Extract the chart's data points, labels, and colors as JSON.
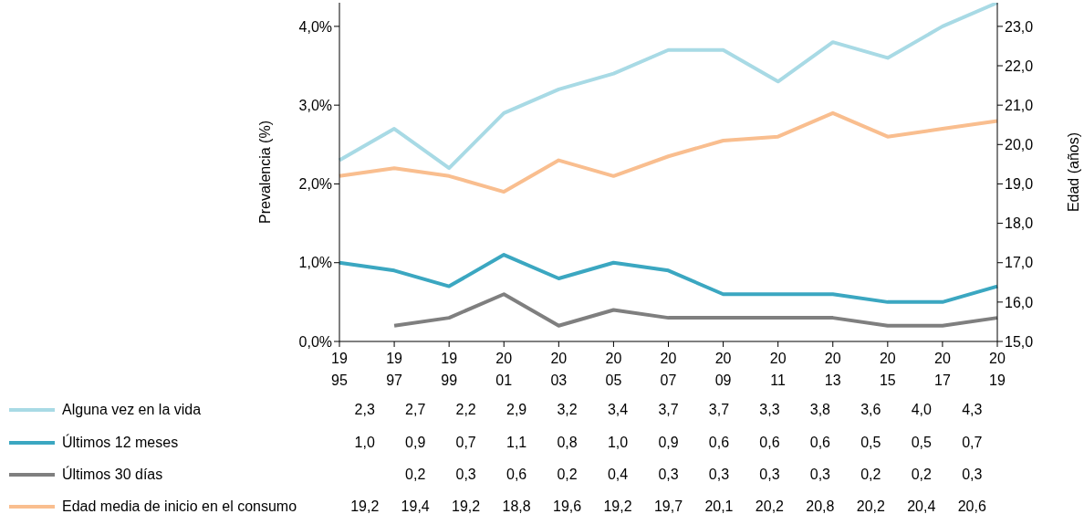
{
  "chart_data": {
    "type": "line",
    "ylabel": "Prevalencia (%)",
    "y2label": "Edad (años)",
    "categories": [
      "1995",
      "1997",
      "1999",
      "2001",
      "2003",
      "2005",
      "2007",
      "2009",
      "2011",
      "2013",
      "2015",
      "2017",
      "2019"
    ],
    "ylim": [
      0,
      4.3
    ],
    "yticks": [
      {
        "value": 0,
        "label": "0,0%"
      },
      {
        "value": 1,
        "label": "1,0%"
      },
      {
        "value": 2,
        "label": "2,0%"
      },
      {
        "value": 3,
        "label": "3,0%"
      },
      {
        "value": 4,
        "label": "4,0%"
      }
    ],
    "y2lim": [
      15,
      23.6
    ],
    "y2ticks": [
      {
        "value": 15,
        "label": "15,0"
      },
      {
        "value": 16,
        "label": "16,0"
      },
      {
        "value": 17,
        "label": "17,0"
      },
      {
        "value": 18,
        "label": "18,0"
      },
      {
        "value": 19,
        "label": "19,0"
      },
      {
        "value": 20,
        "label": "20,0"
      },
      {
        "value": 21,
        "label": "21,0"
      },
      {
        "value": 22,
        "label": "22,0"
      },
      {
        "value": 23,
        "label": "23,0"
      }
    ],
    "legend": "bottom",
    "grid": false,
    "marker": "none",
    "line_style": "solid",
    "series": [
      {
        "name": "Alguna vez en la vida",
        "color": "#a8dae5",
        "values": [
          2.3,
          2.7,
          2.2,
          2.9,
          3.2,
          3.4,
          3.7,
          3.7,
          3.3,
          3.8,
          3.6,
          4.0,
          4.3
        ],
        "value_labels": [
          "2,3",
          "2,7",
          "2,2",
          "2,9",
          "3,2",
          "3,4",
          "3,7",
          "3,7",
          "3,3",
          "3,8",
          "3,6",
          "4,0",
          "4,3"
        ]
      },
      {
        "name": "Últimos 12 meses",
        "color": "#3ba7c1",
        "values": [
          1.0,
          0.9,
          0.7,
          1.1,
          0.8,
          1.0,
          0.9,
          0.6,
          0.6,
          0.6,
          0.5,
          0.5,
          0.7
        ],
        "value_labels": [
          "1,0",
          "0,9",
          "0,7",
          "1,1",
          "0,8",
          "1,0",
          "0,9",
          "0,6",
          "0,6",
          "0,6",
          "0,5",
          "0,5",
          "0,7"
        ]
      },
      {
        "name": "Últimos 30 días",
        "color": "#7f7f7f",
        "values": [
          null,
          0.2,
          0.3,
          0.6,
          0.2,
          0.4,
          0.3,
          0.3,
          0.3,
          0.3,
          0.2,
          0.2,
          0.3
        ],
        "value_labels": [
          null,
          "0,2",
          "0,3",
          "0,6",
          "0,2",
          "0,4",
          "0,3",
          "0,3",
          "0,3",
          "0,3",
          "0,2",
          "0,2",
          "0,3"
        ]
      },
      {
        "name": "Edad media de inicio en el consumo",
        "color": "#f9be8f",
        "axis": "y2",
        "values": [
          19.2,
          19.4,
          19.2,
          18.8,
          19.6,
          19.2,
          19.7,
          20.1,
          20.2,
          20.8,
          20.2,
          20.4,
          20.6
        ],
        "value_labels": [
          "19,2",
          "19,4",
          "19,2",
          "18,8",
          "19,6",
          "19,2",
          "19,7",
          "20,1",
          "20,2",
          "20,8",
          "20,2",
          "20,4",
          "20,6"
        ]
      }
    ]
  }
}
